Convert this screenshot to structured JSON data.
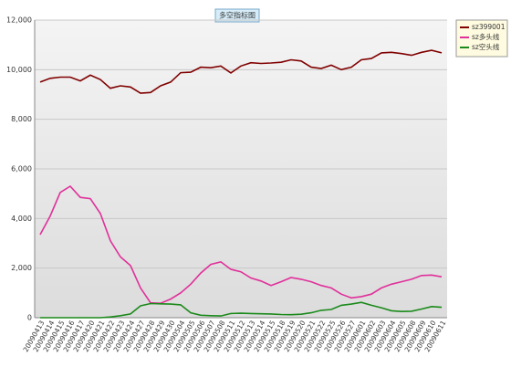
{
  "chart_data": {
    "type": "line",
    "title": "多空指标图",
    "categories": [
      "20090413",
      "20090414",
      "20090415",
      "20090416",
      "20090417",
      "20090420",
      "20090421",
      "20090422",
      "20090423",
      "20090424",
      "20090427",
      "20090428",
      "20090429",
      "20090430",
      "20090504",
      "20090505",
      "20090506",
      "20090507",
      "20090508",
      "20090511",
      "20090512",
      "20090513",
      "20090514",
      "20090515",
      "20090518",
      "20090519",
      "20090520",
      "20090521",
      "20090522",
      "20090525",
      "20090526",
      "20090527",
      "20090601",
      "20090602",
      "20090603",
      "20090604",
      "20090605",
      "20090608",
      "20090609",
      "20090610",
      "20090611"
    ],
    "series": [
      {
        "name": "sz399001",
        "color": "#800000",
        "values": [
          9500,
          9650,
          9700,
          9700,
          9550,
          9780,
          9600,
          9250,
          9350,
          9300,
          9050,
          9080,
          9350,
          9500,
          9880,
          9900,
          10100,
          10080,
          10150,
          9870,
          10150,
          10280,
          10250,
          10270,
          10300,
          10400,
          10350,
          10100,
          10050,
          10180,
          10000,
          10100,
          10400,
          10450,
          10680,
          10700,
          10650,
          10580,
          10700,
          10780,
          10680
        ]
      },
      {
        "name": "sz多头线",
        "color": "#e0309a",
        "values": [
          3350,
          4100,
          5050,
          5300,
          4850,
          4800,
          4200,
          3100,
          2450,
          2100,
          1200,
          600,
          580,
          750,
          1000,
          1350,
          1800,
          2150,
          2250,
          1950,
          1850,
          1600,
          1480,
          1300,
          1450,
          1620,
          1550,
          1450,
          1300,
          1200,
          950,
          800,
          850,
          950,
          1200,
          1350,
          1450,
          1550,
          1700,
          1720,
          1650
        ]
      },
      {
        "name": "sz空头线",
        "color": "#1a8a1a",
        "values": [
          0,
          0,
          0,
          0,
          0,
          0,
          0,
          30,
          80,
          150,
          480,
          570,
          560,
          550,
          520,
          200,
          100,
          80,
          70,
          170,
          180,
          170,
          160,
          150,
          130,
          120,
          140,
          200,
          300,
          330,
          500,
          550,
          620,
          500,
          400,
          280,
          250,
          260,
          350,
          450,
          420
        ]
      }
    ],
    "ylim": [
      0,
      12000
    ],
    "yticks": [
      0,
      {
        "value": 2000,
        "label": "2,000"
      },
      {
        "value": 4000,
        "label": "4,000"
      },
      {
        "value": 6000,
        "label": "6,000"
      },
      {
        "value": 8000,
        "label": "8,000"
      },
      {
        "value": 10000,
        "label": "10,000"
      },
      {
        "value": 12000,
        "label": "12,000"
      }
    ],
    "grid": true
  }
}
